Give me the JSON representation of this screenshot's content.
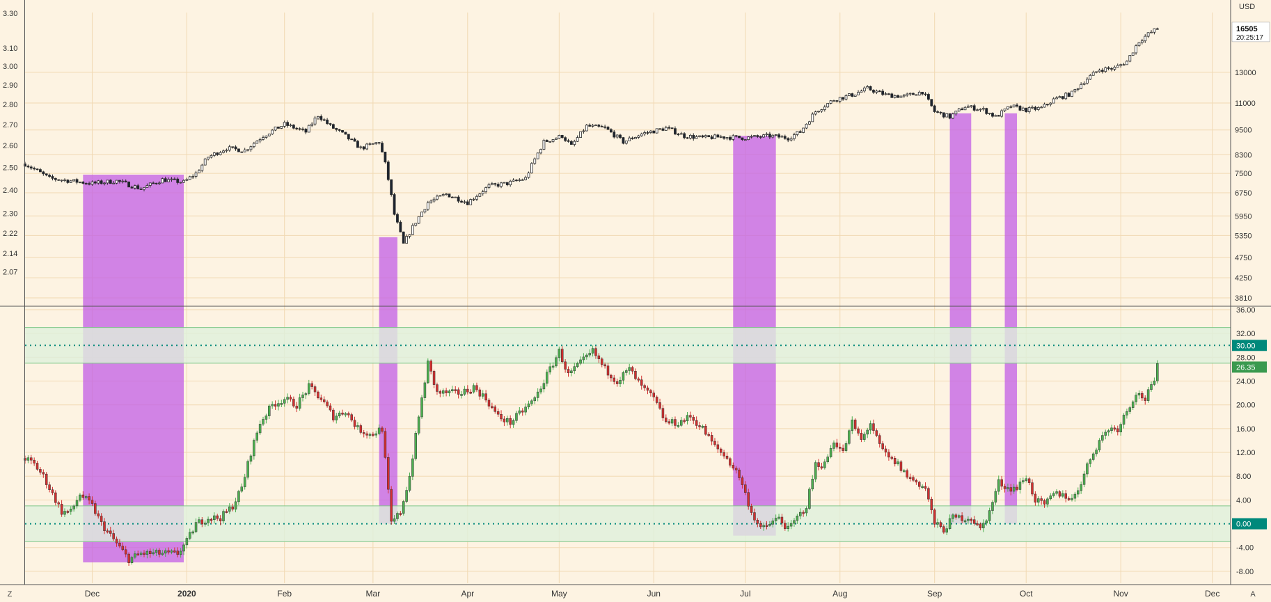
{
  "colors": {
    "background": "#fdf3e2",
    "grid": "#f1d9b3",
    "separator": "#555555",
    "axis_text": "#333333",
    "candle_up": "#ffffff",
    "candle_down": "#1c2430",
    "candle_outline": "#2a2a2a",
    "osc_up": "#4caf50",
    "osc_down": "#d32f2f",
    "highlight": "#c15ee6",
    "band_fill": "#dff0dc",
    "band_line": "#7fc88a",
    "dotted_line": "#00897b",
    "badge_teal": "#00897b",
    "badge_green": "#3a9a4f"
  },
  "bottom_bar": {
    "left_button": "Z",
    "right_button": "A"
  },
  "chart_data": {
    "type": "candlestick",
    "x_axis": {
      "labels": [
        "Dec",
        "2020",
        "Feb",
        "Mar",
        "Apr",
        "May",
        "Jun",
        "Jul",
        "Aug",
        "Sep",
        "Oct",
        "Nov",
        "Dec"
      ],
      "label_day_index": [
        22,
        53,
        85,
        114,
        145,
        175,
        206,
        236,
        267,
        298,
        328,
        359,
        389
      ]
    },
    "price_pane": {
      "left_axis_labels": [
        "3.30",
        "3.10",
        "3.00",
        "2.90",
        "2.80",
        "2.70",
        "2.60",
        "2.50",
        "2.40",
        "2.30",
        "2.22",
        "2.14",
        "2.07"
      ],
      "right_axis_labels": [
        "16505",
        "13000",
        "11000",
        "9500",
        "8300",
        "7500",
        "6750",
        "5950",
        "5350",
        "4750",
        "4250",
        "3810"
      ],
      "right_axis_unit": "USD",
      "last_price": "16505",
      "countdown": "20:25:17",
      "ylim": [
        3810,
        18000
      ],
      "scale": "log",
      "anchors_day_close": [
        [
          0,
          7900
        ],
        [
          8,
          7300
        ],
        [
          15,
          7200
        ],
        [
          22,
          7100
        ],
        [
          30,
          7200
        ],
        [
          38,
          6900
        ],
        [
          45,
          7250
        ],
        [
          52,
          7150
        ],
        [
          56,
          7500
        ],
        [
          60,
          8200
        ],
        [
          66,
          8600
        ],
        [
          72,
          8500
        ],
        [
          78,
          9200
        ],
        [
          85,
          9800
        ],
        [
          92,
          9400
        ],
        [
          96,
          10300
        ],
        [
          100,
          9700
        ],
        [
          104,
          9300
        ],
        [
          110,
          8600
        ],
        [
          116,
          8900
        ],
        [
          118,
          7900
        ],
        [
          121,
          6000
        ],
        [
          124,
          5100
        ],
        [
          127,
          5600
        ],
        [
          132,
          6400
        ],
        [
          138,
          6700
        ],
        [
          145,
          6400
        ],
        [
          152,
          7000
        ],
        [
          158,
          7100
        ],
        [
          164,
          7300
        ],
        [
          170,
          8900
        ],
        [
          176,
          9200
        ],
        [
          179,
          8700
        ],
        [
          184,
          9700
        ],
        [
          190,
          9600
        ],
        [
          196,
          8900
        ],
        [
          202,
          9300
        ],
        [
          210,
          9600
        ],
        [
          216,
          9200
        ],
        [
          222,
          9100
        ],
        [
          228,
          9150
        ],
        [
          236,
          9100
        ],
        [
          244,
          9200
        ],
        [
          250,
          9100
        ],
        [
          254,
          9400
        ],
        [
          259,
          10500
        ],
        [
          265,
          11200
        ],
        [
          271,
          11500
        ],
        [
          276,
          11900
        ],
        [
          282,
          11500
        ],
        [
          288,
          11400
        ],
        [
          294,
          11700
        ],
        [
          298,
          10500
        ],
        [
          303,
          10200
        ],
        [
          308,
          10800
        ],
        [
          314,
          10600
        ],
        [
          318,
          10200
        ],
        [
          323,
          10800
        ],
        [
          328,
          10600
        ],
        [
          333,
          10700
        ],
        [
          337,
          11200
        ],
        [
          343,
          11600
        ],
        [
          347,
          12400
        ],
        [
          352,
          13200
        ],
        [
          357,
          13300
        ],
        [
          361,
          13800
        ],
        [
          365,
          15400
        ],
        [
          368,
          16000
        ],
        [
          371,
          16505
        ]
      ]
    },
    "oscillator_pane": {
      "axis_labels": [
        "36.00",
        "32.00",
        "28.00",
        "24.00",
        "20.00",
        "16.00",
        "12.00",
        "8.00",
        "4.00",
        "-4.00",
        "-8.00"
      ],
      "ylim": [
        -10,
        36
      ],
      "upper_band": [
        27,
        33
      ],
      "upper_line": 30,
      "lower_band": [
        -3,
        3
      ],
      "lower_line": 0,
      "badges": [
        "30.00",
        "26.35",
        "0.00"
      ],
      "current_value": 26.35,
      "anchors_day_value": [
        [
          0,
          11
        ],
        [
          3,
          10
        ],
        [
          6,
          8
        ],
        [
          9,
          5
        ],
        [
          12,
          2
        ],
        [
          15,
          2
        ],
        [
          18,
          5
        ],
        [
          22,
          3
        ],
        [
          25,
          0
        ],
        [
          28,
          -2
        ],
        [
          31,
          -4
        ],
        [
          34,
          -6
        ],
        [
          38,
          -5
        ],
        [
          42,
          -5
        ],
        [
          46,
          -5
        ],
        [
          50,
          -5
        ],
        [
          53,
          -3
        ],
        [
          56,
          0
        ],
        [
          60,
          1
        ],
        [
          64,
          1
        ],
        [
          68,
          3
        ],
        [
          71,
          6
        ],
        [
          74,
          12
        ],
        [
          77,
          17
        ],
        [
          81,
          20
        ],
        [
          85,
          21
        ],
        [
          89,
          20
        ],
        [
          93,
          23
        ],
        [
          97,
          21
        ],
        [
          101,
          18
        ],
        [
          105,
          19
        ],
        [
          109,
          16
        ],
        [
          113,
          15
        ],
        [
          117,
          16
        ],
        [
          120,
          0
        ],
        [
          123,
          2
        ],
        [
          126,
          8
        ],
        [
          129,
          18
        ],
        [
          132,
          27
        ],
        [
          135,
          22
        ],
        [
          139,
          22
        ],
        [
          143,
          22
        ],
        [
          147,
          23
        ],
        [
          151,
          21
        ],
        [
          155,
          18
        ],
        [
          159,
          17
        ],
        [
          163,
          19
        ],
        [
          167,
          21
        ],
        [
          171,
          25
        ],
        [
          175,
          29
        ],
        [
          178,
          25
        ],
        [
          182,
          27
        ],
        [
          186,
          29
        ],
        [
          190,
          26
        ],
        [
          194,
          24
        ],
        [
          198,
          26
        ],
        [
          202,
          23
        ],
        [
          206,
          21
        ],
        [
          210,
          17
        ],
        [
          214,
          17
        ],
        [
          218,
          18
        ],
        [
          222,
          16
        ],
        [
          226,
          13
        ],
        [
          230,
          11
        ],
        [
          234,
          8
        ],
        [
          238,
          2
        ],
        [
          241,
          -1
        ],
        [
          244,
          0
        ],
        [
          247,
          1
        ],
        [
          250,
          -1
        ],
        [
          253,
          1
        ],
        [
          256,
          3
        ],
        [
          259,
          10
        ],
        [
          262,
          10
        ],
        [
          265,
          14
        ],
        [
          268,
          12
        ],
        [
          271,
          17
        ],
        [
          274,
          14
        ],
        [
          277,
          17
        ],
        [
          280,
          13
        ],
        [
          283,
          11
        ],
        [
          286,
          10
        ],
        [
          289,
          8
        ],
        [
          292,
          7
        ],
        [
          295,
          6
        ],
        [
          298,
          0
        ],
        [
          301,
          -1
        ],
        [
          304,
          1
        ],
        [
          307,
          1
        ],
        [
          310,
          1
        ],
        [
          313,
          -1
        ],
        [
          316,
          2
        ],
        [
          319,
          7
        ],
        [
          322,
          6
        ],
        [
          325,
          6
        ],
        [
          328,
          8
        ],
        [
          331,
          4
        ],
        [
          334,
          3
        ],
        [
          337,
          5
        ],
        [
          340,
          5
        ],
        [
          343,
          4
        ],
        [
          346,
          7
        ],
        [
          349,
          11
        ],
        [
          352,
          14
        ],
        [
          355,
          16
        ],
        [
          358,
          16
        ],
        [
          361,
          19
        ],
        [
          364,
          22
        ],
        [
          367,
          21
        ],
        [
          370,
          24
        ],
        [
          371,
          26.35
        ]
      ]
    },
    "highlight_zones": [
      {
        "day_start": 19,
        "day_end": 52,
        "price_top": 7450,
        "osc_bottom": -6.5
      },
      {
        "day_start": 116,
        "day_end": 122,
        "price_top": 5300,
        "osc_bottom": 0
      },
      {
        "day_start": 232,
        "day_end": 246,
        "price_top": 9200,
        "osc_bottom": -2
      },
      {
        "day_start": 303,
        "day_end": 310,
        "price_top": 10400,
        "osc_bottom": 0
      },
      {
        "day_start": 321,
        "day_end": 325,
        "price_top": 10400,
        "osc_bottom": 0
      }
    ]
  }
}
